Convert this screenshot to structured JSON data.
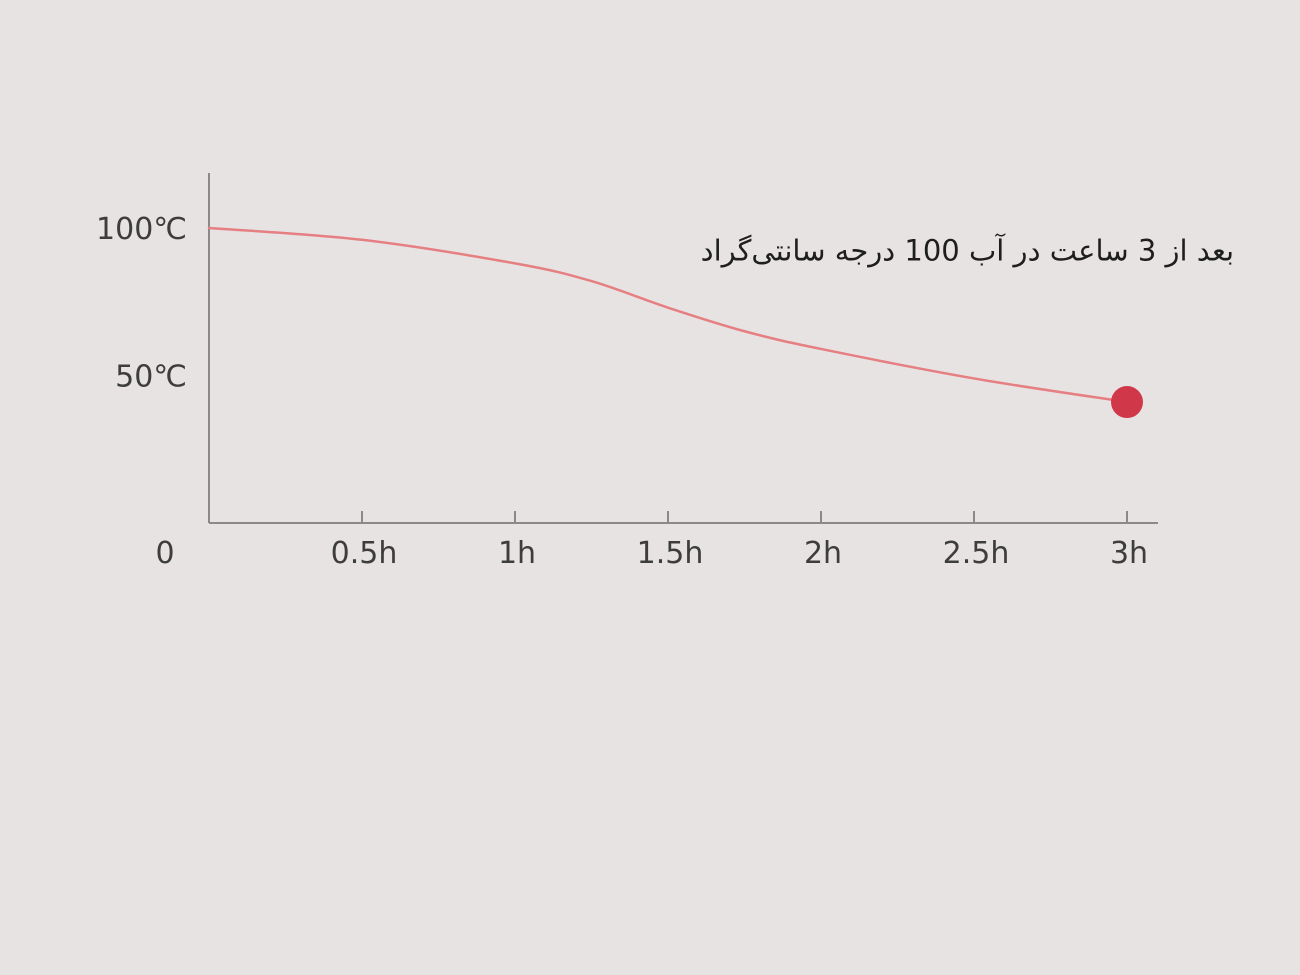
{
  "colors": {
    "background": "#e8e3e3",
    "axis": "#8a8a8a",
    "line": "#e57f82",
    "marker": "#d0384a",
    "text": "#3d3d3d"
  },
  "chart_data": {
    "type": "line",
    "title": "",
    "xlabel": "",
    "ylabel": "",
    "grid": false,
    "legend": "none",
    "xlim": [
      0,
      3.25
    ],
    "ylim": [
      0,
      125
    ],
    "x_ticks": [
      {
        "value": 0.5,
        "label": "0.5h"
      },
      {
        "value": 1,
        "label": "1h"
      },
      {
        "value": 1.5,
        "label": "1.5h"
      },
      {
        "value": 2,
        "label": "2h"
      },
      {
        "value": 2.5,
        "label": "2.5h"
      },
      {
        "value": 3,
        "label": "3h"
      }
    ],
    "y_ticks": [
      {
        "value": 100,
        "label": "100℃"
      },
      {
        "value": 50,
        "label": "50℃"
      }
    ],
    "origin_label": "0",
    "series": [
      {
        "x": [
          0,
          0.5,
          1,
          1.25,
          1.5,
          1.75,
          2,
          2.5,
          3
        ],
        "y": [
          100,
          96,
          88,
          82,
          73,
          65,
          59,
          49,
          41
        ]
      }
    ],
    "highlight_point": {
      "x": 3,
      "y": 41
    },
    "annotation": {
      "text": "بعد از 3 ساعت در آب 100 درجه سانتی‌گراد",
      "anchor": {
        "x": 3.35,
        "y": 89
      }
    }
  }
}
